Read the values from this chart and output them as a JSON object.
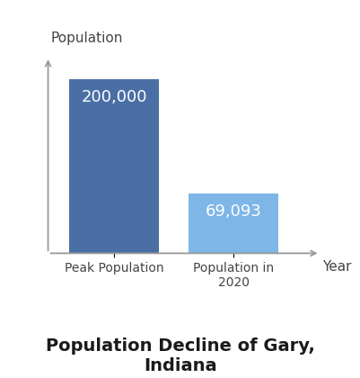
{
  "categories": [
    "Peak Population",
    "Population in\n2020"
  ],
  "values": [
    200000,
    69093
  ],
  "bar_colors": [
    "#4a6fa5",
    "#7eb6e8"
  ],
  "bar_labels": [
    "200,000",
    "69,093"
  ],
  "label_color": "#ffffff",
  "ylabel": "Population",
  "xlabel": "Year",
  "title": "Population Decline of Gary,\nIndiana",
  "title_fontsize": 14,
  "title_fontweight": "bold",
  "ylim": [
    0,
    230000
  ],
  "bar_width": 0.75,
  "background_color": "#ffffff",
  "label_fontsize": 13
}
